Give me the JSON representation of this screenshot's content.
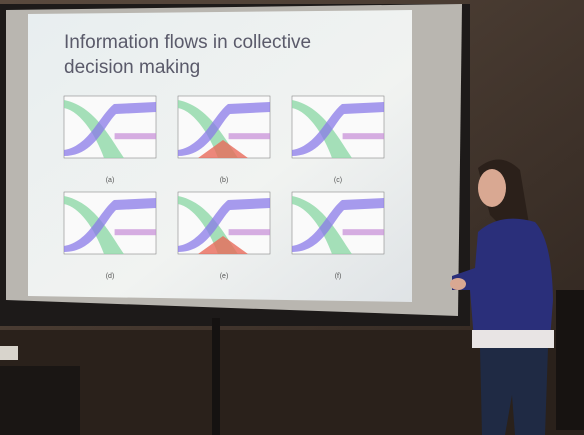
{
  "slide": {
    "title_lines": [
      "Information flows in collective",
      "decision making"
    ],
    "panels": [
      {
        "label": "(a)"
      },
      {
        "label": "(b)"
      },
      {
        "label": "(c)"
      },
      {
        "label": "(d)"
      },
      {
        "label": "(e)"
      },
      {
        "label": "(f)"
      }
    ]
  }
}
